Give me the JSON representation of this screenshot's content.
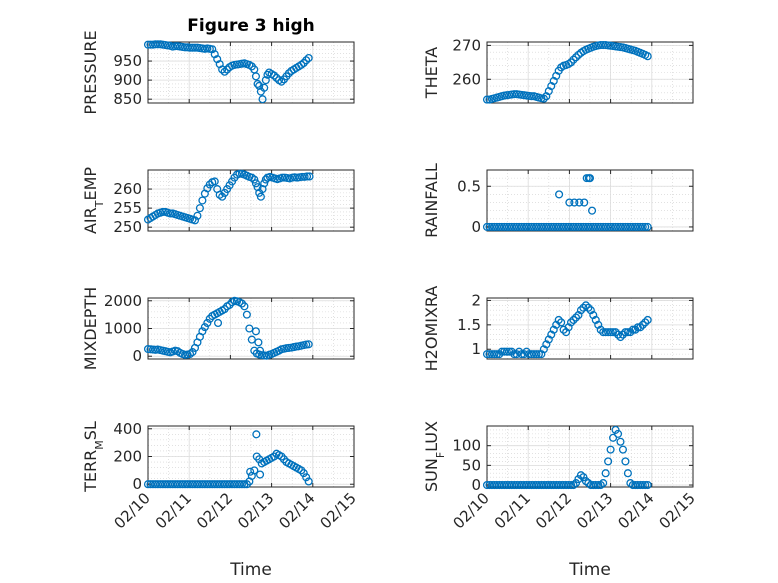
{
  "figure": {
    "title": "Figure 3 high",
    "marker_color": "#0072BD"
  },
  "chart_data": [
    {
      "type": "scatter",
      "id": "pressure",
      "title": "Figure 3 high",
      "ylabel": "PRESSURE",
      "ylabel_parts": [
        {
          "t": "PRESSURE"
        }
      ],
      "xlim": [
        0,
        5
      ],
      "ylim": [
        840,
        1000
      ],
      "yticks": [
        850,
        900,
        950
      ],
      "xticks": [],
      "grid": true,
      "x": [
        0.0,
        0.06,
        0.12,
        0.18,
        0.24,
        0.3,
        0.36,
        0.42,
        0.48,
        0.54,
        0.6,
        0.66,
        0.72,
        0.78,
        0.84,
        0.9,
        0.96,
        1.02,
        1.08,
        1.14,
        1.2,
        1.26,
        1.32,
        1.38,
        1.44,
        1.5,
        1.56,
        1.62,
        1.68,
        1.74,
        1.8,
        1.86,
        1.92,
        1.98,
        2.04,
        2.1,
        2.16,
        2.22,
        2.28,
        2.34,
        2.4,
        2.46,
        2.52,
        2.58,
        2.62,
        2.66,
        2.7,
        2.74,
        2.78,
        2.82,
        2.86,
        2.9,
        2.94,
        3.0,
        3.06,
        3.12,
        3.18,
        3.24,
        3.3,
        3.36,
        3.42,
        3.48,
        3.54,
        3.6,
        3.66,
        3.72,
        3.78,
        3.84,
        3.9
      ],
      "y": [
        993,
        993,
        993,
        994,
        994,
        994,
        993,
        992,
        991,
        990,
        988,
        989,
        989,
        988,
        987,
        986,
        986,
        985,
        985,
        985,
        985,
        984,
        983,
        982,
        983,
        982,
        981,
        968,
        955,
        942,
        928,
        922,
        928,
        934,
        938,
        940,
        941,
        942,
        943,
        944,
        942,
        940,
        936,
        928,
        910,
        890,
        885,
        870,
        850,
        880,
        900,
        914,
        920,
        916,
        912,
        906,
        900,
        896,
        902,
        910,
        918,
        924,
        928,
        932,
        936,
        940,
        945,
        952,
        958
      ]
    },
    {
      "type": "scatter",
      "id": "theta",
      "ylabel": "THETA",
      "ylabel_parts": [
        {
          "t": "THETA"
        }
      ],
      "xlim": [
        0,
        5
      ],
      "ylim": [
        253,
        271
      ],
      "yticks": [
        260,
        270
      ],
      "xticks": [],
      "grid": true,
      "x": [
        0.0,
        0.06,
        0.12,
        0.18,
        0.24,
        0.3,
        0.36,
        0.42,
        0.48,
        0.54,
        0.6,
        0.66,
        0.72,
        0.78,
        0.84,
        0.9,
        0.96,
        1.02,
        1.08,
        1.14,
        1.2,
        1.26,
        1.32,
        1.38,
        1.44,
        1.5,
        1.56,
        1.62,
        1.68,
        1.74,
        1.8,
        1.86,
        1.92,
        1.98,
        2.04,
        2.1,
        2.16,
        2.22,
        2.28,
        2.34,
        2.4,
        2.46,
        2.52,
        2.58,
        2.64,
        2.7,
        2.76,
        2.82,
        2.88,
        2.94,
        3.0,
        3.06,
        3.12,
        3.18,
        3.24,
        3.3,
        3.36,
        3.42,
        3.48,
        3.54,
        3.6,
        3.66,
        3.72,
        3.78,
        3.84,
        3.9
      ],
      "y": [
        254.0,
        254.0,
        254.2,
        254.4,
        254.6,
        254.8,
        255.0,
        255.2,
        255.3,
        255.4,
        255.5,
        255.6,
        255.6,
        255.5,
        255.4,
        255.3,
        255.2,
        255.1,
        255.0,
        255.0,
        254.8,
        254.6,
        254.4,
        254.3,
        255.0,
        256.5,
        258.0,
        259.5,
        261.0,
        262.5,
        263.5,
        264.0,
        264.2,
        264.5,
        265.0,
        265.8,
        266.5,
        267.2,
        267.8,
        268.3,
        268.7,
        269.0,
        269.3,
        269.6,
        269.8,
        270.0,
        270.1,
        270.1,
        270.1,
        270.0,
        269.9,
        269.8,
        269.7,
        269.6,
        269.5,
        269.4,
        269.2,
        269.0,
        268.8,
        268.6,
        268.4,
        268.1,
        267.8,
        267.5,
        267.2,
        266.8
      ]
    },
    {
      "type": "scatter",
      "id": "air_temp",
      "ylabel": "AIR_TEMP",
      "ylabel_parts": [
        {
          "t": "AIR"
        },
        {
          "t": "T",
          "sub": true
        },
        {
          "t": "EMP"
        }
      ],
      "xlim": [
        0,
        5
      ],
      "ylim": [
        249,
        265
      ],
      "yticks": [
        250,
        255,
        260
      ],
      "xticks": [],
      "grid": true,
      "x": [
        0.0,
        0.06,
        0.12,
        0.18,
        0.24,
        0.3,
        0.36,
        0.42,
        0.48,
        0.54,
        0.6,
        0.66,
        0.72,
        0.78,
        0.84,
        0.9,
        0.96,
        1.02,
        1.08,
        1.14,
        1.2,
        1.26,
        1.32,
        1.38,
        1.44,
        1.5,
        1.56,
        1.62,
        1.68,
        1.74,
        1.8,
        1.86,
        1.92,
        1.98,
        2.04,
        2.1,
        2.16,
        2.22,
        2.28,
        2.34,
        2.4,
        2.46,
        2.52,
        2.58,
        2.62,
        2.66,
        2.7,
        2.74,
        2.78,
        2.82,
        2.86,
        2.9,
        2.96,
        3.02,
        3.08,
        3.14,
        3.2,
        3.26,
        3.32,
        3.38,
        3.44,
        3.5,
        3.56,
        3.62,
        3.68,
        3.74,
        3.8,
        3.86,
        3.92
      ],
      "y": [
        252.0,
        252.4,
        252.8,
        253.2,
        253.6,
        253.8,
        254.0,
        254.0,
        253.8,
        253.6,
        253.6,
        253.4,
        253.2,
        253.0,
        252.8,
        252.6,
        252.4,
        252.2,
        252.0,
        251.8,
        253.0,
        255.0,
        257.0,
        258.8,
        260.2,
        261.2,
        261.8,
        262.0,
        260.0,
        258.5,
        258.0,
        259.0,
        260.0,
        261.0,
        262.0,
        263.0,
        263.8,
        264.0,
        264.0,
        263.8,
        263.5,
        263.2,
        263.0,
        262.5,
        261.5,
        260.5,
        259.0,
        258.0,
        260.0,
        261.5,
        262.5,
        263.0,
        263.2,
        263.0,
        262.8,
        262.6,
        262.8,
        263.0,
        263.0,
        262.9,
        262.8,
        263.0,
        263.1,
        263.0,
        263.1,
        263.2,
        263.2,
        263.3,
        263.3
      ]
    },
    {
      "type": "scatter",
      "id": "rainfall",
      "ylabel": "RAINFALL",
      "ylabel_parts": [
        {
          "t": "RAINFALL"
        }
      ],
      "xlim": [
        0,
        5
      ],
      "ylim": [
        -0.05,
        0.7
      ],
      "yticks": [
        0,
        0.5
      ],
      "xticks": [],
      "grid": true,
      "x": [
        0.0,
        0.06,
        0.12,
        0.18,
        0.24,
        0.3,
        0.36,
        0.42,
        0.48,
        0.54,
        0.6,
        0.66,
        0.72,
        0.78,
        0.84,
        0.9,
        0.96,
        1.02,
        1.08,
        1.14,
        1.2,
        1.26,
        1.32,
        1.38,
        1.44,
        1.5,
        1.56,
        1.62,
        1.68,
        1.74,
        1.8,
        1.86,
        1.92,
        1.98,
        2.04,
        2.1,
        2.16,
        2.22,
        2.28,
        2.34,
        2.4,
        2.46,
        2.52,
        2.58,
        2.64,
        2.7,
        2.76,
        2.82,
        2.88,
        2.94,
        3.0,
        3.06,
        3.12,
        3.18,
        3.24,
        3.3,
        3.36,
        3.42,
        3.48,
        3.54,
        3.6,
        3.66,
        3.72,
        3.78,
        3.84,
        3.9,
        1.75,
        2.0,
        2.12,
        2.24,
        2.36,
        2.42,
        2.47,
        2.5,
        2.55
      ],
      "y": [
        0,
        0,
        0,
        0,
        0,
        0,
        0,
        0,
        0,
        0,
        0,
        0,
        0,
        0,
        0,
        0,
        0,
        0,
        0,
        0,
        0,
        0,
        0,
        0,
        0,
        0,
        0,
        0,
        0,
        0,
        0,
        0,
        0,
        0,
        0,
        0,
        0,
        0,
        0,
        0,
        0,
        0,
        0,
        0,
        0,
        0,
        0,
        0,
        0,
        0,
        0,
        0,
        0,
        0,
        0,
        0,
        0,
        0,
        0,
        0,
        0,
        0,
        0,
        0,
        0,
        0,
        0.4,
        0.3,
        0.3,
        0.3,
        0.3,
        0.6,
        0.6,
        0.6,
        0.2
      ]
    },
    {
      "type": "scatter",
      "id": "mixdepth",
      "ylabel": "MIXDEPTH",
      "ylabel_parts": [
        {
          "t": "MIXDEPTH"
        }
      ],
      "xlim": [
        0,
        5
      ],
      "ylim": [
        -100,
        2100
      ],
      "yticks": [
        0,
        1000,
        2000
      ],
      "xticks": [],
      "grid": true,
      "x": [
        0.0,
        0.06,
        0.12,
        0.18,
        0.24,
        0.3,
        0.36,
        0.42,
        0.48,
        0.54,
        0.6,
        0.66,
        0.72,
        0.78,
        0.84,
        0.9,
        0.96,
        1.02,
        1.08,
        1.14,
        1.2,
        1.26,
        1.32,
        1.38,
        1.44,
        1.5,
        1.56,
        1.62,
        1.68,
        1.74,
        1.8,
        1.86,
        1.92,
        1.98,
        2.04,
        2.1,
        2.16,
        2.22,
        2.28,
        2.34,
        2.4,
        2.46,
        2.52,
        2.58,
        2.64,
        2.7,
        2.76,
        2.82,
        2.88,
        2.94,
        3.0,
        3.06,
        3.12,
        3.18,
        3.24,
        3.3,
        3.36,
        3.42,
        3.48,
        3.54,
        3.6,
        3.66,
        3.72,
        3.78,
        3.84,
        3.9,
        2.62,
        2.68,
        2.72,
        1.7
      ],
      "y": [
        260,
        250,
        240,
        230,
        240,
        220,
        200,
        180,
        160,
        140,
        170,
        200,
        180,
        120,
        80,
        50,
        60,
        80,
        150,
        300,
        500,
        700,
        900,
        1050,
        1200,
        1350,
        1450,
        1500,
        1550,
        1600,
        1650,
        1700,
        1800,
        1850,
        1950,
        2000,
        1980,
        1950,
        1900,
        1800,
        1500,
        1000,
        600,
        200,
        100,
        60,
        40,
        30,
        20,
        50,
        80,
        120,
        160,
        200,
        250,
        270,
        290,
        300,
        310,
        330,
        350,
        360,
        380,
        400,
        420,
        430,
        900,
        500,
        200,
        1200
      ]
    },
    {
      "type": "scatter",
      "id": "h2omixra",
      "ylabel": "H2OMIXRA",
      "ylabel_parts": [
        {
          "t": "H2OMIXRA"
        }
      ],
      "xlim": [
        0,
        5
      ],
      "ylim": [
        0.8,
        2.05
      ],
      "yticks": [
        1,
        1.5,
        2
      ],
      "xticks": [],
      "grid": true,
      "x": [
        0.0,
        0.06,
        0.12,
        0.18,
        0.24,
        0.3,
        0.36,
        0.42,
        0.48,
        0.54,
        0.6,
        0.66,
        0.72,
        0.78,
        0.84,
        0.9,
        0.96,
        1.02,
        1.08,
        1.14,
        1.2,
        1.26,
        1.32,
        1.38,
        1.44,
        1.5,
        1.56,
        1.62,
        1.68,
        1.74,
        1.8,
        1.86,
        1.92,
        1.98,
        2.04,
        2.1,
        2.16,
        2.22,
        2.28,
        2.34,
        2.4,
        2.46,
        2.52,
        2.58,
        2.64,
        2.7,
        2.76,
        2.82,
        2.88,
        2.94,
        3.0,
        3.06,
        3.12,
        3.18,
        3.24,
        3.3,
        3.36,
        3.42,
        3.48,
        3.54,
        3.6,
        3.66,
        3.72,
        3.78,
        3.84,
        3.9
      ],
      "y": [
        0.9,
        0.9,
        0.9,
        0.9,
        0.9,
        0.9,
        0.95,
        0.95,
        0.95,
        0.95,
        0.95,
        0.9,
        0.9,
        0.95,
        0.9,
        0.9,
        0.95,
        0.9,
        0.9,
        0.9,
        0.9,
        0.9,
        0.9,
        1.0,
        1.1,
        1.2,
        1.3,
        1.4,
        1.5,
        1.6,
        1.55,
        1.4,
        1.35,
        1.45,
        1.55,
        1.6,
        1.65,
        1.7,
        1.8,
        1.85,
        1.9,
        1.85,
        1.8,
        1.7,
        1.6,
        1.5,
        1.4,
        1.35,
        1.35,
        1.35,
        1.35,
        1.35,
        1.35,
        1.3,
        1.25,
        1.3,
        1.35,
        1.35,
        1.35,
        1.4,
        1.4,
        1.45,
        1.45,
        1.5,
        1.55,
        1.6
      ]
    },
    {
      "type": "scatter",
      "id": "terr_msl",
      "ylabel": "TERR_MSL",
      "ylabel_parts": [
        {
          "t": "TERR"
        },
        {
          "t": "M",
          "sub": true
        },
        {
          "t": "SL"
        }
      ],
      "xlim": [
        0,
        5
      ],
      "ylim": [
        -20,
        420
      ],
      "yticks": [
        0,
        200,
        400
      ],
      "xticks": [
        "02/10",
        "02/11",
        "02/12",
        "02/13",
        "02/14",
        "02/15"
      ],
      "xlabel": "Time",
      "grid": true,
      "x": [
        0.0,
        0.06,
        0.12,
        0.18,
        0.24,
        0.3,
        0.36,
        0.42,
        0.48,
        0.54,
        0.6,
        0.66,
        0.72,
        0.78,
        0.84,
        0.9,
        0.96,
        1.02,
        1.08,
        1.14,
        1.2,
        1.26,
        1.32,
        1.38,
        1.44,
        1.5,
        1.56,
        1.62,
        1.68,
        1.74,
        1.8,
        1.86,
        1.92,
        1.98,
        2.04,
        2.1,
        2.16,
        2.22,
        2.28,
        2.34,
        2.4,
        2.46,
        2.52,
        2.58,
        2.64,
        2.7,
        2.76,
        2.82,
        2.88,
        2.94,
        3.0,
        3.06,
        3.12,
        3.18,
        3.24,
        3.3,
        3.36,
        3.42,
        3.48,
        3.54,
        3.6,
        3.66,
        3.72,
        3.78,
        3.84,
        3.9,
        2.63,
        2.72,
        2.48
      ],
      "y": [
        0,
        0,
        0,
        0,
        0,
        0,
        0,
        0,
        0,
        0,
        0,
        0,
        0,
        0,
        0,
        0,
        0,
        0,
        0,
        0,
        0,
        0,
        0,
        0,
        0,
        0,
        0,
        0,
        0,
        0,
        0,
        0,
        0,
        0,
        0,
        0,
        0,
        0,
        0,
        0,
        0,
        20,
        60,
        100,
        200,
        180,
        150,
        160,
        170,
        180,
        190,
        200,
        220,
        210,
        200,
        180,
        160,
        150,
        140,
        130,
        120,
        110,
        100,
        80,
        50,
        20,
        360,
        70,
        90
      ]
    },
    {
      "type": "scatter",
      "id": "sun_flux",
      "ylabel": "SUN_FLUX",
      "ylabel_parts": [
        {
          "t": "SUN"
        },
        {
          "t": "F",
          "sub": true
        },
        {
          "t": "LUX"
        }
      ],
      "xlim": [
        0,
        5
      ],
      "ylim": [
        -5,
        150
      ],
      "yticks": [
        0,
        50,
        100
      ],
      "xticks": [
        "02/10",
        "02/11",
        "02/12",
        "02/13",
        "02/14",
        "02/15"
      ],
      "xlabel": "Time",
      "grid": true,
      "x": [
        0.0,
        0.06,
        0.12,
        0.18,
        0.24,
        0.3,
        0.36,
        0.42,
        0.48,
        0.54,
        0.6,
        0.66,
        0.72,
        0.78,
        0.84,
        0.9,
        0.96,
        1.02,
        1.08,
        1.14,
        1.2,
        1.26,
        1.32,
        1.38,
        1.44,
        1.5,
        1.56,
        1.62,
        1.68,
        1.74,
        1.8,
        1.86,
        1.92,
        1.98,
        2.04,
        2.1,
        2.16,
        2.22,
        2.28,
        2.34,
        2.4,
        2.46,
        2.52,
        2.58,
        2.64,
        2.7,
        2.76,
        2.82,
        2.88,
        2.94,
        3.0,
        3.06,
        3.12,
        3.18,
        3.24,
        3.3,
        3.36,
        3.42,
        3.48,
        3.54,
        3.6,
        3.66,
        3.72,
        3.78,
        3.84,
        3.9
      ],
      "y": [
        0,
        0,
        0,
        0,
        0,
        0,
        0,
        0,
        0,
        0,
        0,
        0,
        0,
        0,
        0,
        0,
        0,
        0,
        0,
        0,
        0,
        0,
        0,
        0,
        0,
        0,
        0,
        0,
        0,
        0,
        0,
        0,
        0,
        0,
        0,
        0,
        5,
        15,
        25,
        20,
        10,
        5,
        0,
        0,
        0,
        0,
        0,
        5,
        30,
        60,
        90,
        120,
        140,
        130,
        110,
        90,
        60,
        30,
        5,
        0,
        0,
        0,
        0,
        0,
        0,
        0
      ]
    }
  ]
}
